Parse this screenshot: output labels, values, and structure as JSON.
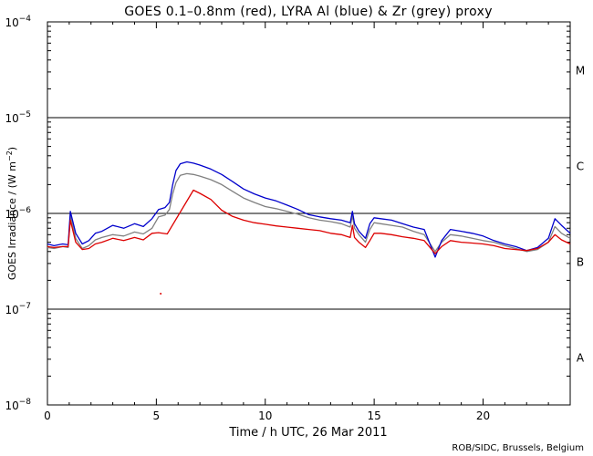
{
  "chart_data": {
    "type": "line",
    "title": "GOES 0.1–0.8nm (red), LYRA Al (blue) & Zr (grey) proxy",
    "xlabel": "Time / h UTC, 26 Mar 2011",
    "ylabel": "GOES Irradiance / (W m",
    "ylabel_sup": "−2",
    "ylabel_close": ")",
    "xlim": [
      0,
      24
    ],
    "ylim_log10": [
      -8,
      -4
    ],
    "xticks": [
      {
        "value": 0,
        "label": "0"
      },
      {
        "value": 5,
        "label": "5"
      },
      {
        "value": 10,
        "label": "10"
      },
      {
        "value": 15,
        "label": "15"
      },
      {
        "value": 20,
        "label": "20"
      }
    ],
    "yticks": [
      {
        "exp": -8,
        "base": "10",
        "sup": "−8"
      },
      {
        "exp": -7,
        "base": "10",
        "sup": "−7"
      },
      {
        "exp": -6,
        "base": "10",
        "sup": "−6"
      },
      {
        "exp": -5,
        "base": "10",
        "sup": "−5"
      },
      {
        "exp": -4,
        "base": "10",
        "sup": "−4"
      }
    ],
    "flare_class_lines_log10": [
      -7,
      -6,
      -5
    ],
    "flare_classes": [
      {
        "label": "A",
        "log10": -7.5
      },
      {
        "label": "B",
        "log10": -6.5
      },
      {
        "label": "C",
        "log10": -5.5
      },
      {
        "label": "M",
        "log10": -4.5
      }
    ],
    "series": [
      {
        "name": "LYRA Zr (grey) proxy",
        "color": "#808080",
        "x": [
          0.0,
          0.3,
          0.7,
          0.95,
          1.05,
          1.3,
          1.6,
          1.9,
          2.2,
          2.5,
          3.0,
          3.5,
          4.0,
          4.4,
          4.8,
          5.1,
          5.4,
          5.6,
          5.75,
          5.9,
          6.1,
          6.4,
          6.7,
          7.0,
          7.5,
          8.0,
          8.5,
          9.0,
          9.5,
          10.0,
          10.5,
          11.0,
          11.5,
          12.0,
          12.5,
          13.0,
          13.5,
          13.9,
          14.0,
          14.1,
          14.3,
          14.6,
          14.8,
          15.0,
          15.3,
          15.8,
          16.3,
          16.8,
          17.3,
          17.8,
          18.1,
          18.5,
          19.0,
          19.5,
          20.0,
          20.5,
          21.0,
          21.5,
          22.0,
          22.5,
          23.0,
          23.3,
          23.6,
          24.0
        ],
        "y": [
          4.4e-07,
          4.3e-07,
          4.5e-07,
          4.4e-07,
          9.5e-07,
          5.5e-07,
          4.3e-07,
          4.6e-07,
          5.3e-07,
          5.6e-07,
          6e-07,
          5.8e-07,
          6.4e-07,
          6.1e-07,
          7e-07,
          9.2e-07,
          9.6e-07,
          1.1e-06,
          1.6e-06,
          2.1e-06,
          2.5e-06,
          2.6e-06,
          2.55e-06,
          2.45e-06,
          2.25e-06,
          2e-06,
          1.7e-06,
          1.45e-06,
          1.3e-06,
          1.18e-06,
          1.12e-06,
          1.05e-06,
          9.8e-07,
          9e-07,
          8.5e-07,
          8.2e-07,
          7.8e-07,
          7.2e-07,
          9.5e-07,
          7e-07,
          6e-07,
          5e-07,
          6.8e-07,
          8e-07,
          7.8e-07,
          7.5e-07,
          7.2e-07,
          6.5e-07,
          6e-07,
          4e-07,
          5e-07,
          6e-07,
          5.8e-07,
          5.5e-07,
          5.2e-07,
          5e-07,
          4.6e-07,
          4.3e-07,
          4e-07,
          4.2e-07,
          5e-07,
          7.3e-07,
          6.2e-07,
          5.5e-07
        ]
      },
      {
        "name": "LYRA Al (blue) proxy",
        "color": "#0000cc",
        "x": [
          0.0,
          0.3,
          0.7,
          0.95,
          1.05,
          1.3,
          1.6,
          1.9,
          2.2,
          2.5,
          3.0,
          3.5,
          4.0,
          4.4,
          4.8,
          5.1,
          5.4,
          5.6,
          5.75,
          5.9,
          6.1,
          6.4,
          6.7,
          7.0,
          7.5,
          8.0,
          8.5,
          9.0,
          9.5,
          10.0,
          10.5,
          11.0,
          11.5,
          12.0,
          12.5,
          13.0,
          13.5,
          13.9,
          14.0,
          14.1,
          14.3,
          14.6,
          14.8,
          15.0,
          15.3,
          15.8,
          16.3,
          16.8,
          17.3,
          17.8,
          18.1,
          18.5,
          19.0,
          19.5,
          20.0,
          20.5,
          21.0,
          21.5,
          22.0,
          22.5,
          23.0,
          23.3,
          23.6,
          24.0
        ],
        "y": [
          4.8e-07,
          4.6e-07,
          4.8e-07,
          4.7e-07,
          1.05e-06,
          6.2e-07,
          4.8e-07,
          5.2e-07,
          6.2e-07,
          6.5e-07,
          7.5e-07,
          7e-07,
          7.8e-07,
          7.3e-07,
          8.8e-07,
          1.1e-06,
          1.15e-06,
          1.3e-06,
          2e-06,
          2.8e-06,
          3.3e-06,
          3.45e-06,
          3.35e-06,
          3.2e-06,
          2.9e-06,
          2.55e-06,
          2.15e-06,
          1.8e-06,
          1.6e-06,
          1.45e-06,
          1.35e-06,
          1.22e-06,
          1.1e-06,
          9.7e-07,
          9.2e-07,
          8.8e-07,
          8.5e-07,
          8e-07,
          1.05e-06,
          7.8e-07,
          6.5e-07,
          5.5e-07,
          7.8e-07,
          9e-07,
          8.8e-07,
          8.5e-07,
          7.8e-07,
          7.2e-07,
          6.8e-07,
          3.5e-07,
          5.2e-07,
          6.8e-07,
          6.5e-07,
          6.2e-07,
          5.8e-07,
          5.2e-07,
          4.8e-07,
          4.5e-07,
          4.1e-07,
          4.4e-07,
          5.5e-07,
          8.8e-07,
          7.5e-07,
          6.2e-07
        ]
      },
      {
        "name": "GOES 0.1–0.8nm (red)",
        "color": "#dd0000",
        "x": [
          0.0,
          0.3,
          0.7,
          0.95,
          1.05,
          1.3,
          1.6,
          1.9,
          2.2,
          2.5,
          3.0,
          3.5,
          4.0,
          4.4,
          4.8,
          5.1,
          5.5,
          6.7,
          7.0,
          7.5,
          8.0,
          8.5,
          9.0,
          9.5,
          10.0,
          10.5,
          11.0,
          11.5,
          12.0,
          12.5,
          13.0,
          13.5,
          13.9,
          14.0,
          14.1,
          14.3,
          14.6,
          14.8,
          15.0,
          15.3,
          15.8,
          16.3,
          16.8,
          17.3,
          17.8,
          18.1,
          18.5,
          19.0,
          19.5,
          20.0,
          20.5,
          21.0,
          21.5,
          22.0,
          22.5,
          23.0,
          23.3,
          23.6,
          24.0
        ],
        "y": [
          4.5e-07,
          4.4e-07,
          4.5e-07,
          4.5e-07,
          8.5e-07,
          5e-07,
          4.2e-07,
          4.3e-07,
          4.8e-07,
          5e-07,
          5.5e-07,
          5.2e-07,
          5.6e-07,
          5.3e-07,
          6.2e-07,
          6.3e-07,
          6.1e-07,
          1.75e-06,
          1.62e-06,
          1.4e-06,
          1.08e-06,
          9.3e-07,
          8.5e-07,
          8e-07,
          7.7e-07,
          7.4e-07,
          7.2e-07,
          7e-07,
          6.8e-07,
          6.6e-07,
          6.2e-07,
          6e-07,
          5.6e-07,
          7.5e-07,
          5.6e-07,
          5e-07,
          4.4e-07,
          5.2e-07,
          6.2e-07,
          6.2e-07,
          6e-07,
          5.7e-07,
          5.5e-07,
          5.2e-07,
          3.8e-07,
          4.5e-07,
          5.2e-07,
          5e-07,
          4.9e-07,
          4.8e-07,
          4.6e-07,
          4.3e-07,
          4.2e-07,
          4.1e-07,
          4.3e-07,
          5e-07,
          6e-07,
          5.3e-07,
          4.8e-07
        ]
      }
    ],
    "outlier_points": [
      {
        "x": 5.2,
        "y": 1.45e-07,
        "color": "#dd0000"
      }
    ]
  },
  "credit": "ROB/SIDC, Brussels, Belgium"
}
